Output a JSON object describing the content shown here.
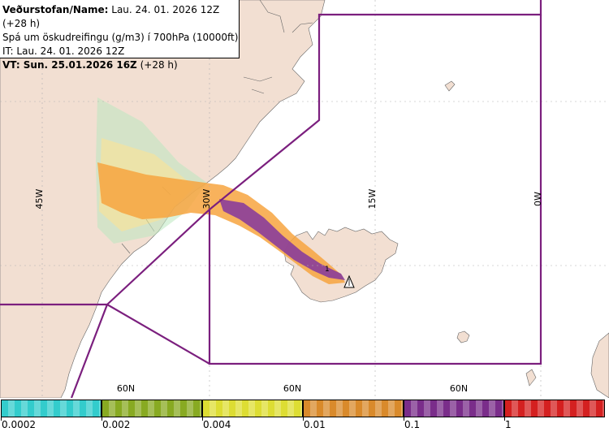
{
  "info": {
    "line1_label": "Veðurstofan/Name:",
    "line1_value": "Lau. 24. 01. 2026 12Z (+28 h)",
    "line2": "Spá um öskudreifingu (g/m3) í 700hPa (10000ft)",
    "line3": "IT: Lau. 24. 01. 2026 12Z",
    "line4_label": "VT: Sun. 25.01.2026 16Z",
    "line4_value": "(+28 h)"
  },
  "grid_labels": {
    "lon_45w": "45W",
    "lon_30w": "30W",
    "lon_15w": "15W",
    "lon_0w": "0W",
    "lat_60n_a": "60N",
    "lat_60n_b": "60N",
    "lat_60n_c": "60N"
  },
  "volcano_marker": "1",
  "legend": {
    "ticks": [
      "0.0002",
      "0.002",
      "0.004",
      "0.01",
      "0.1",
      "1"
    ],
    "colors": [
      "#33cccc",
      "#88aa22",
      "#dddd33",
      "#d98a2b",
      "#7a2d8a",
      "#d42020"
    ]
  },
  "colors": {
    "land": "#f2dfd2",
    "sea": "#ffffff",
    "boundary": "#7b1f7e",
    "grid": "#b0b0b0",
    "ash_orange": "#f7a540",
    "ash_purple": "#8a3d9a"
  }
}
